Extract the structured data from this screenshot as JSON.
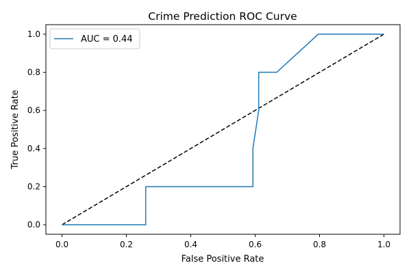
{
  "chart_data": {
    "type": "line",
    "title": "Crime Prediction ROC Curve",
    "xlabel": "False Positive Rate",
    "ylabel": "True Positive Rate",
    "xlim": [
      -0.05,
      1.05
    ],
    "ylim": [
      -0.05,
      1.05
    ],
    "xticks": [
      0.0,
      0.2,
      0.4,
      0.6,
      0.8,
      1.0
    ],
    "yticks": [
      0.0,
      0.2,
      0.4,
      0.6,
      0.8,
      1.0
    ],
    "xtick_labels": [
      "0.0",
      "0.2",
      "0.4",
      "0.6",
      "0.8",
      "1.0"
    ],
    "ytick_labels": [
      "0.0",
      "0.2",
      "0.4",
      "0.6",
      "0.8",
      "1.0"
    ],
    "grid": false,
    "legend_position": "top-left",
    "series": [
      {
        "name": "AUC = 0.44",
        "color": "#1f77b4",
        "style": "solid",
        "x": [
          0.0,
          0.26,
          0.26,
          0.593,
          0.593,
          0.611,
          0.611,
          0.667,
          0.796,
          1.0
        ],
        "y": [
          0.0,
          0.0,
          0.2,
          0.2,
          0.4,
          0.6,
          0.8,
          0.8,
          1.0,
          1.0
        ]
      },
      {
        "color": "#000000",
        "style": "dashed",
        "x": [
          0.0,
          1.0
        ],
        "y": [
          0.0,
          1.0
        ]
      }
    ]
  }
}
